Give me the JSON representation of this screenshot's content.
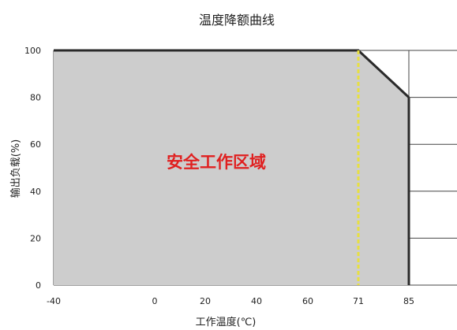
{
  "chart_data": {
    "type": "area",
    "title": "温度降额曲线",
    "xlabel": "工作温度(℃)",
    "ylabel": "输出负载(%)",
    "x_ticks": [
      "-40",
      "0",
      "20",
      "40",
      "60",
      "71",
      "85"
    ],
    "y_ticks": [
      "0",
      "20",
      "40",
      "60",
      "80",
      "100"
    ],
    "ylim": [
      0,
      100
    ],
    "series": [
      {
        "x": [
          -40,
          71,
          85
        ],
        "y": [
          100,
          100,
          80
        ]
      }
    ],
    "marker_line_x": 71,
    "region_label": "安全工作区域",
    "grid": true,
    "colors": {
      "area_fill": "#cdcdcd",
      "curve": "#2a2a2a",
      "marker_line": "#e8e040",
      "region_label": "#e02020",
      "grid": "#444444"
    }
  }
}
